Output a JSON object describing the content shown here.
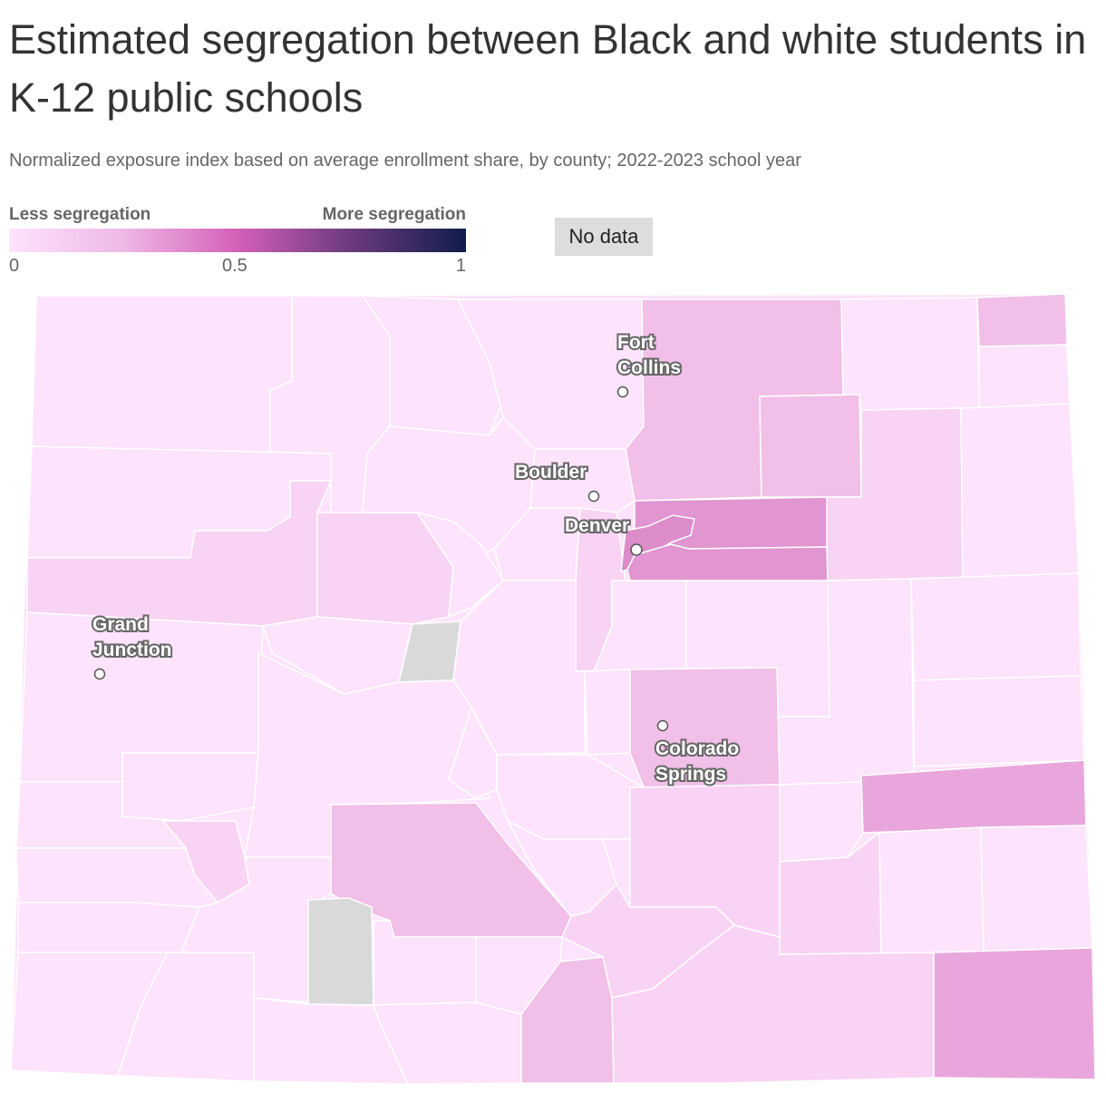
{
  "header": {
    "title": "Estimated segregation between Black and white students in K-12 public schools",
    "subtitle": "Normalized exposure index based on average enrollment share, by county; 2022-2023 school year"
  },
  "legend": {
    "low_label": "Less segregation",
    "high_label": "More segregation",
    "ticks": [
      "0",
      "0.5",
      "1"
    ],
    "no_data_label": "No data",
    "colors": {
      "c0": "#fde3fb",
      "c1": "#f9d3f3",
      "c2": "#f1bfe8",
      "c3": "#e9a6dc",
      "c4": "#e195d1",
      "c5": "#dd8cca",
      "nodata": "#d9d9d9"
    }
  },
  "cities": {
    "fort_collins": [
      "Fort",
      "Collins"
    ],
    "boulder": [
      "Boulder"
    ],
    "denver": [
      "Denver"
    ],
    "grand_junction": [
      "Grand",
      "Junction"
    ],
    "colorado_springs": [
      "Colorado",
      "Springs"
    ]
  }
}
